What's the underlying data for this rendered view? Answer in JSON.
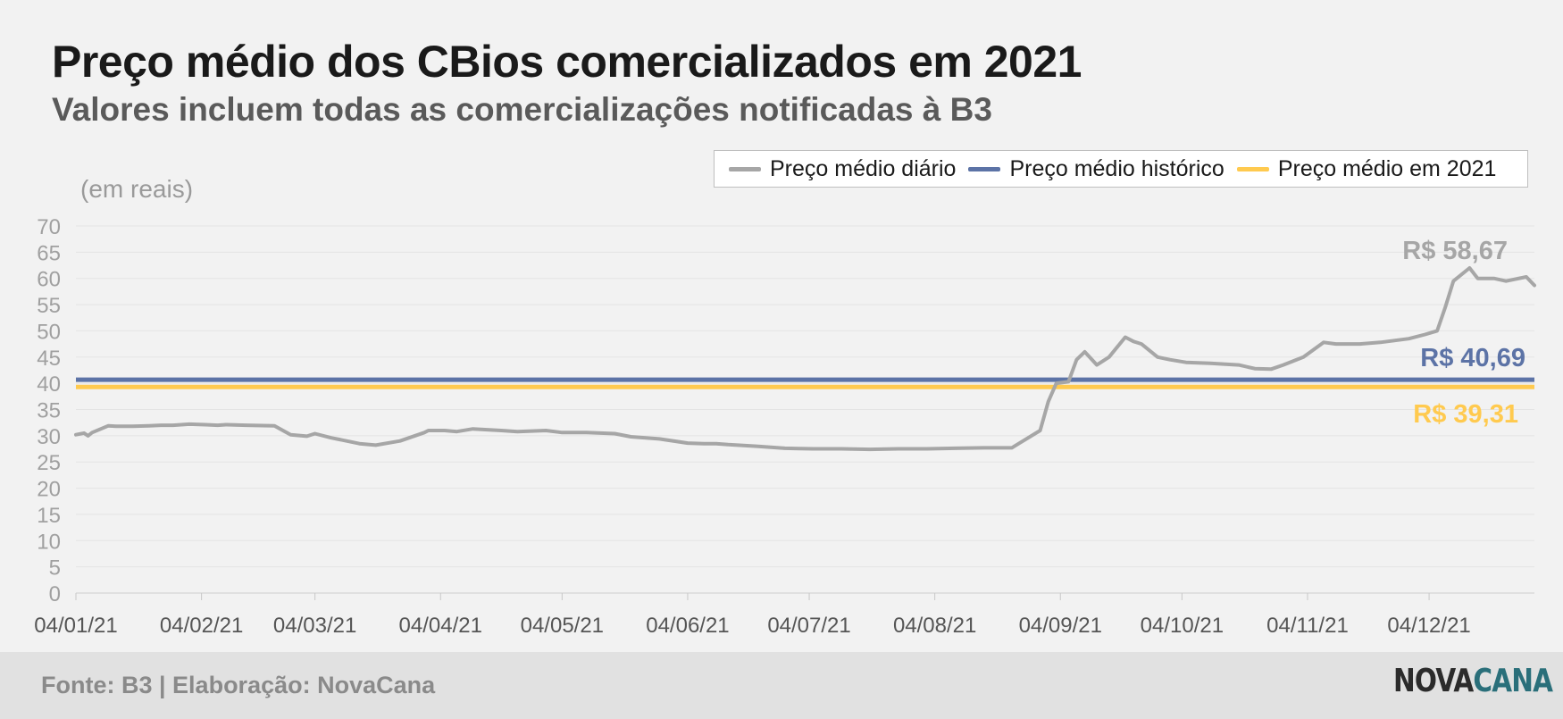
{
  "title": "Preço médio dos CBios comercializados em 2021",
  "subtitle": "Valores incluem todas as comercializações notificadas à B3",
  "unit_label": "(em reais)",
  "legend": {
    "daily": "Preço médio diário",
    "historic": "Preço médio histórico",
    "year": "Preço médio em 2021"
  },
  "footer": {
    "source": "Fonte: B3 | Elaboração: NovaCana",
    "logo_part1": "NOVA",
    "logo_part2": "CANA"
  },
  "colors": {
    "daily": "#a6a6a6",
    "historic": "#5c73a6",
    "year": "#ffca4f",
    "logo_accent": "#2a6f7a"
  },
  "chart_data": {
    "type": "line",
    "title": "Preço médio dos CBios comercializados em 2021",
    "subtitle": "Valores incluem todas as comercializações notificadas à B3",
    "ylabel": "(em reais)",
    "ylim": [
      0,
      70
    ],
    "y_ticks": [
      0,
      5,
      10,
      15,
      20,
      25,
      30,
      35,
      40,
      45,
      50,
      55,
      60,
      65,
      70
    ],
    "x_ticks": [
      "04/01/21",
      "04/02/21",
      "04/03/21",
      "04/04/21",
      "04/05/21",
      "04/06/21",
      "04/07/21",
      "04/08/21",
      "04/09/21",
      "04/10/21",
      "04/11/21",
      "04/12/21"
    ],
    "x_range": [
      "2021-01-04",
      "2021-12-30"
    ],
    "grid": true,
    "legend_position": "top-right",
    "series": [
      {
        "name": "Preço médio diário",
        "x": [
          "2021-01-04",
          "2021-01-06",
          "2021-01-07",
          "2021-01-08",
          "2021-01-12",
          "2021-01-14",
          "2021-01-18",
          "2021-01-22",
          "2021-01-25",
          "2021-01-28",
          "2021-02-01",
          "2021-02-05",
          "2021-02-08",
          "2021-02-10",
          "2021-02-15",
          "2021-02-22",
          "2021-02-26",
          "2021-03-02",
          "2021-03-04",
          "2021-03-08",
          "2021-03-10",
          "2021-03-15",
          "2021-03-19",
          "2021-03-25",
          "2021-03-31",
          "2021-04-01",
          "2021-04-05",
          "2021-04-08",
          "2021-04-12",
          "2021-04-19",
          "2021-04-23",
          "2021-04-30",
          "2021-05-03",
          "2021-05-04",
          "2021-05-10",
          "2021-05-17",
          "2021-05-21",
          "2021-05-28",
          "2021-06-04",
          "2021-06-08",
          "2021-06-11",
          "2021-06-14",
          "2021-06-21",
          "2021-06-28",
          "2021-07-05",
          "2021-07-12",
          "2021-07-19",
          "2021-07-26",
          "2021-08-02",
          "2021-08-09",
          "2021-08-16",
          "2021-08-23",
          "2021-08-30",
          "2021-09-01",
          "2021-09-03",
          "2021-09-06",
          "2021-09-08",
          "2021-09-10",
          "2021-09-13",
          "2021-09-16",
          "2021-09-20",
          "2021-09-22",
          "2021-09-24",
          "2021-09-28",
          "2021-10-01",
          "2021-10-05",
          "2021-10-11",
          "2021-10-18",
          "2021-10-22",
          "2021-10-26",
          "2021-10-29",
          "2021-11-03",
          "2021-11-08",
          "2021-11-11",
          "2021-11-17",
          "2021-11-22",
          "2021-11-29",
          "2021-12-03",
          "2021-12-06",
          "2021-12-08",
          "2021-12-10",
          "2021-12-14",
          "2021-12-16",
          "2021-12-20",
          "2021-12-23",
          "2021-12-28",
          "2021-12-30"
        ],
        "y": [
          30.2,
          30.5,
          30.0,
          30.6,
          31.9,
          31.8,
          31.8,
          31.9,
          32.0,
          32.0,
          32.2,
          32.1,
          32.0,
          32.1,
          32.0,
          31.9,
          30.2,
          29.9,
          30.4,
          29.6,
          29.3,
          28.5,
          28.2,
          29.0,
          30.6,
          31.0,
          31.0,
          30.8,
          31.3,
          31.0,
          30.8,
          31.0,
          30.7,
          30.6,
          30.6,
          30.4,
          29.8,
          29.4,
          28.6,
          28.5,
          28.5,
          28.3,
          28.0,
          27.6,
          27.5,
          27.5,
          27.4,
          27.5,
          27.5,
          27.6,
          27.7,
          27.7,
          31.0,
          36.5,
          40.0,
          40.3,
          44.5,
          46.0,
          43.5,
          45.0,
          48.8,
          48.0,
          47.5,
          45.0,
          44.5,
          44.0,
          43.8,
          43.5,
          42.8,
          42.7,
          43.5,
          45.0,
          47.8,
          47.5,
          47.5,
          47.8,
          48.5,
          49.3,
          50.0,
          54.5,
          59.5,
          62.0,
          60.0,
          60.0,
          59.5,
          60.3,
          58.67
        ]
      },
      {
        "name": "Preço médio histórico",
        "value": 40.69,
        "label": "R$ 40,69"
      },
      {
        "name": "Preço médio em 2021",
        "value": 39.31,
        "label": "R$ 39,31"
      }
    ],
    "annotations": [
      {
        "text": "R$ 58,67",
        "series": "Preço médio diário"
      },
      {
        "text": "R$ 40,69",
        "series": "Preço médio histórico"
      },
      {
        "text": "R$ 39,31",
        "series": "Preço médio em 2021"
      }
    ]
  }
}
